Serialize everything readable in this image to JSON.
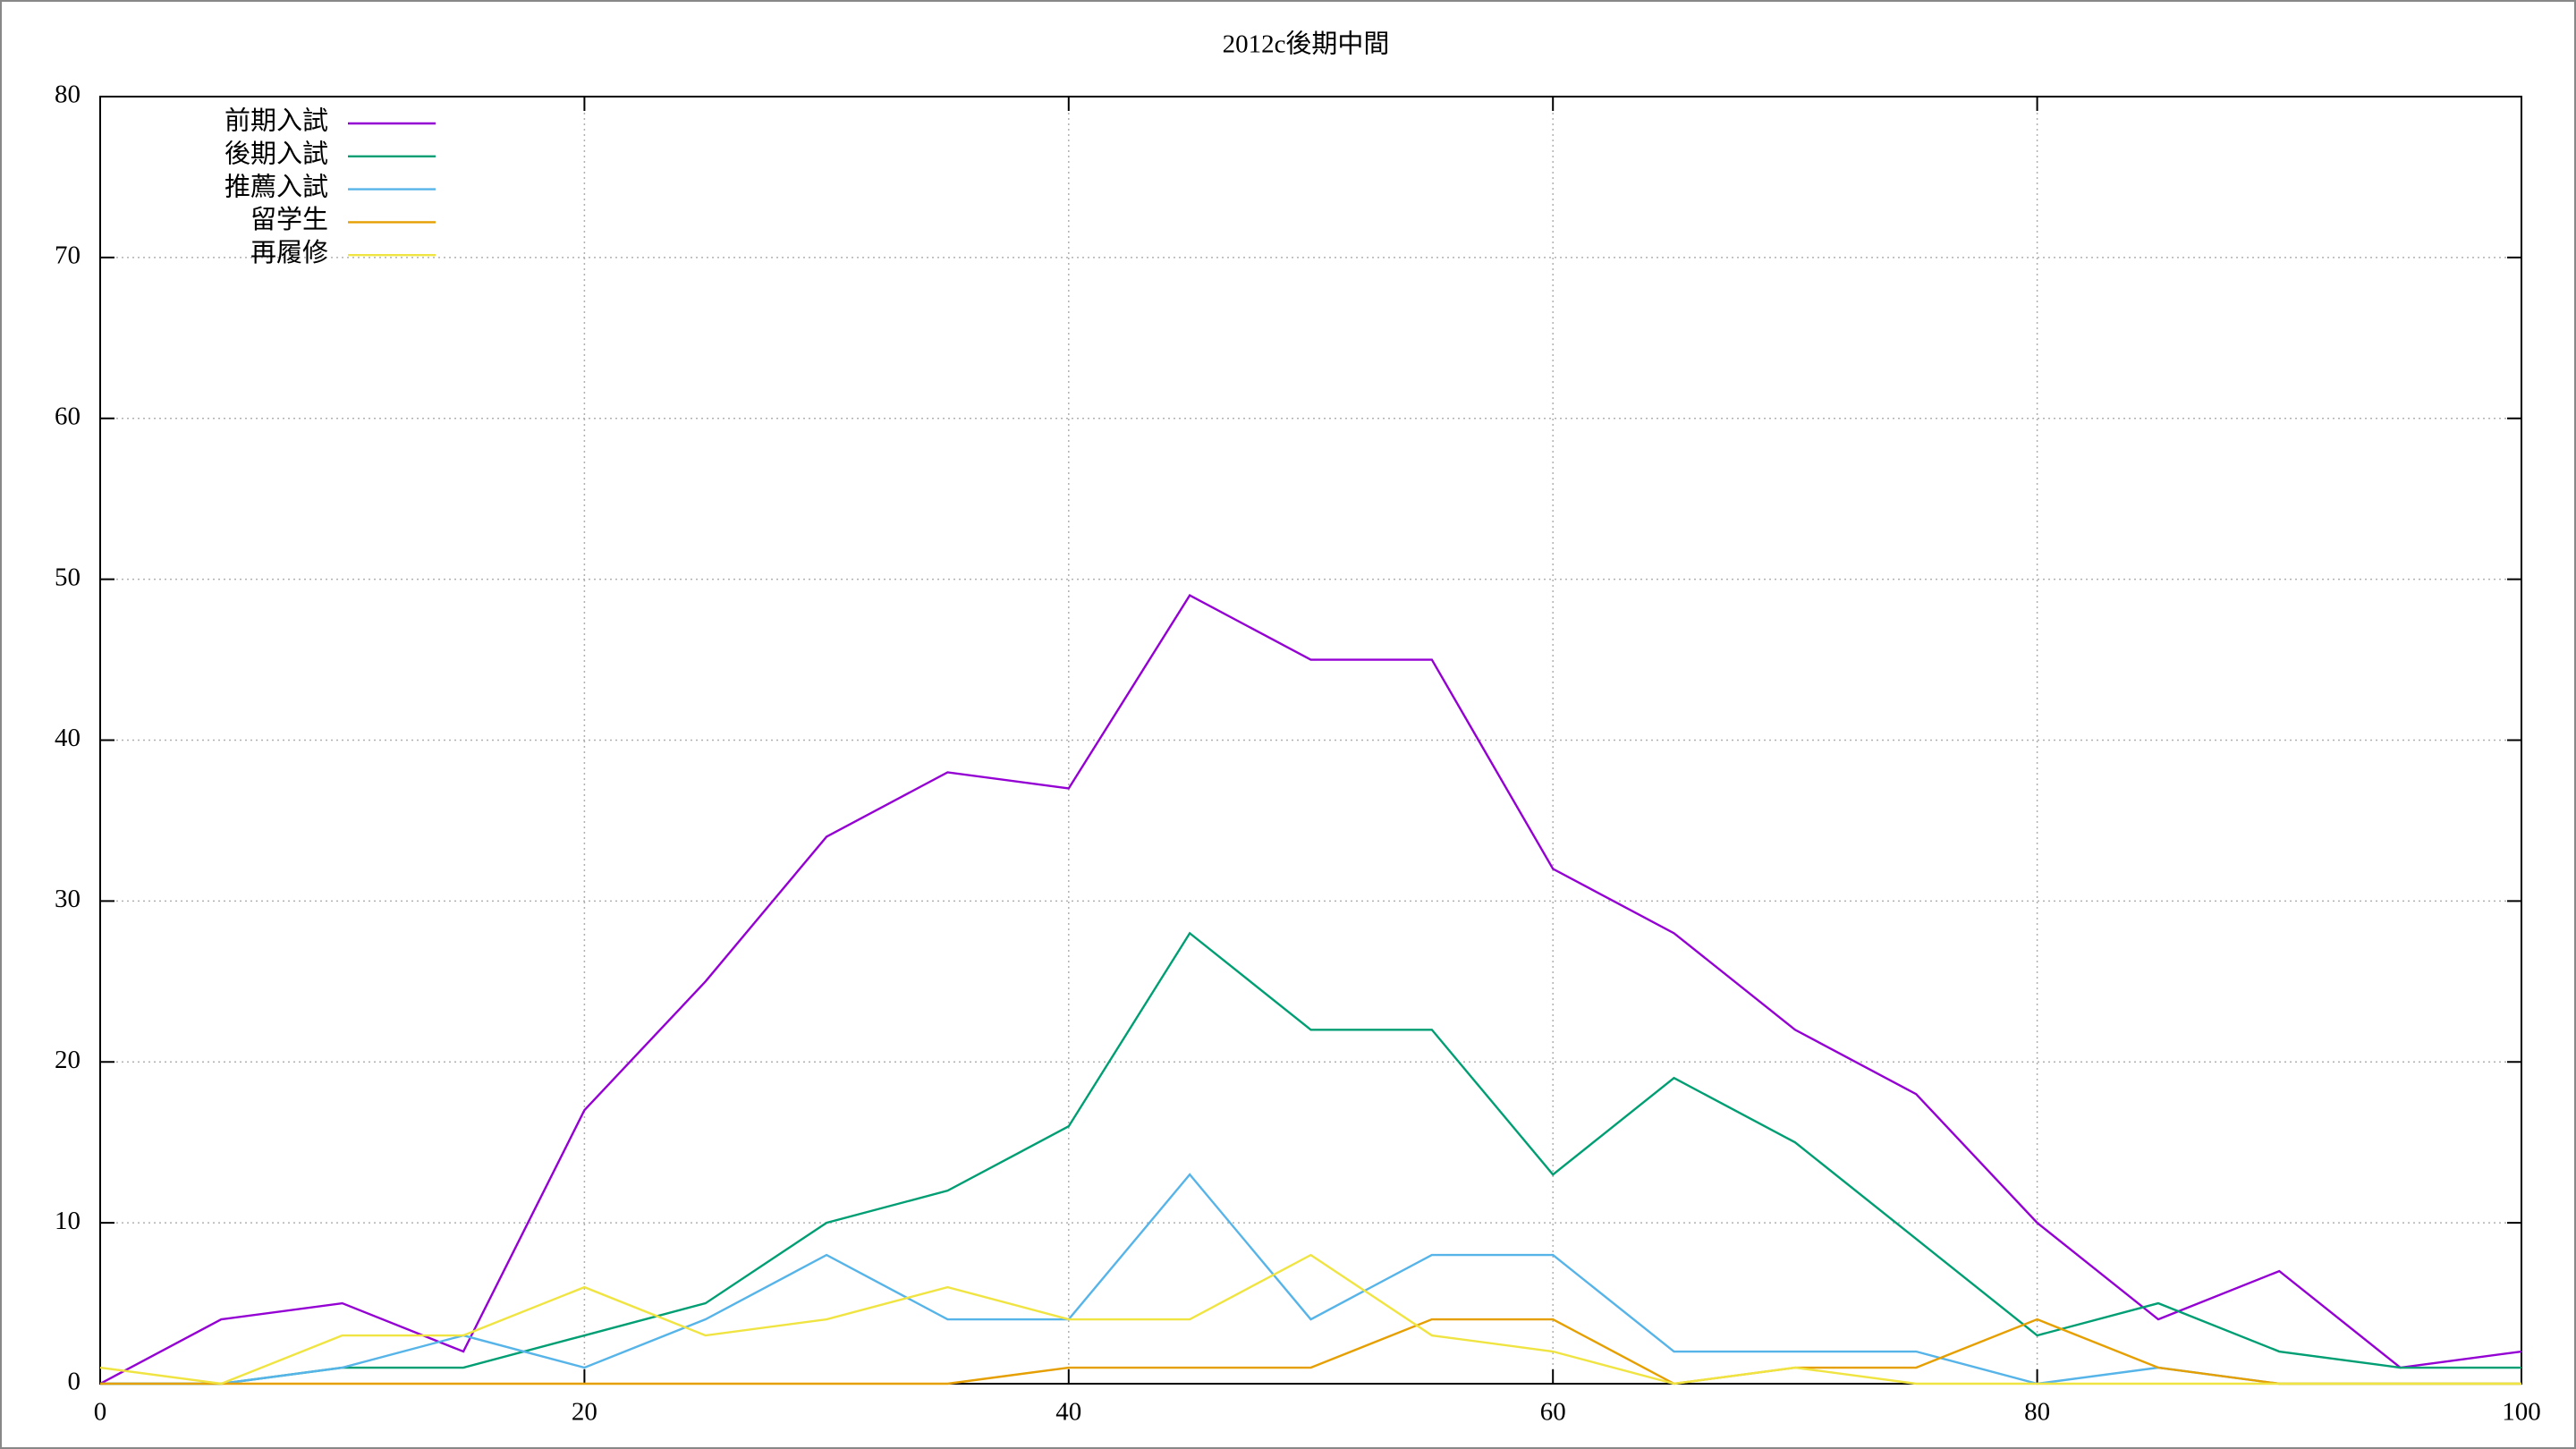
{
  "chart_data": {
    "type": "line",
    "title": "2012c後期中間",
    "x": [
      0,
      5,
      10,
      15,
      20,
      25,
      30,
      35,
      40,
      45,
      50,
      55,
      60,
      65,
      70,
      75,
      80,
      85,
      90,
      95,
      100
    ],
    "series": [
      {
        "name": "前期入試",
        "color": "#9400d3",
        "values": [
          0,
          4,
          5,
          2,
          17,
          25,
          34,
          38,
          37,
          49,
          45,
          45,
          32,
          28,
          22,
          18,
          10,
          4,
          7,
          1,
          2
        ]
      },
      {
        "name": "後期入試",
        "color": "#009e73",
        "values": [
          0,
          0,
          1,
          1,
          3,
          5,
          10,
          12,
          16,
          28,
          22,
          22,
          13,
          19,
          15,
          9,
          3,
          5,
          2,
          1,
          1
        ]
      },
      {
        "name": "推薦入試",
        "color": "#56b4e9",
        "values": [
          0,
          0,
          1,
          3,
          1,
          4,
          8,
          4,
          4,
          13,
          4,
          8,
          8,
          2,
          2,
          2,
          0,
          1,
          0,
          0,
          0
        ]
      },
      {
        "name": "留学生",
        "color": "#e69f00",
        "values": [
          0,
          0,
          0,
          0,
          0,
          0,
          0,
          0,
          1,
          1,
          1,
          4,
          4,
          0,
          1,
          1,
          4,
          1,
          0,
          0,
          0
        ]
      },
      {
        "name": "再履修",
        "color": "#f0e442",
        "values": [
          1,
          0,
          3,
          3,
          6,
          3,
          4,
          6,
          4,
          4,
          8,
          3,
          2,
          0,
          1,
          0,
          0,
          0,
          0,
          0,
          0
        ]
      }
    ],
    "xlim": [
      0,
      100
    ],
    "xticks": [
      0,
      20,
      40,
      60,
      80,
      100
    ],
    "ylim": [
      0,
      80
    ],
    "yticks": [
      0,
      10,
      20,
      30,
      40,
      50,
      60,
      70,
      80
    ],
    "grid": true,
    "legend": "top-left"
  }
}
